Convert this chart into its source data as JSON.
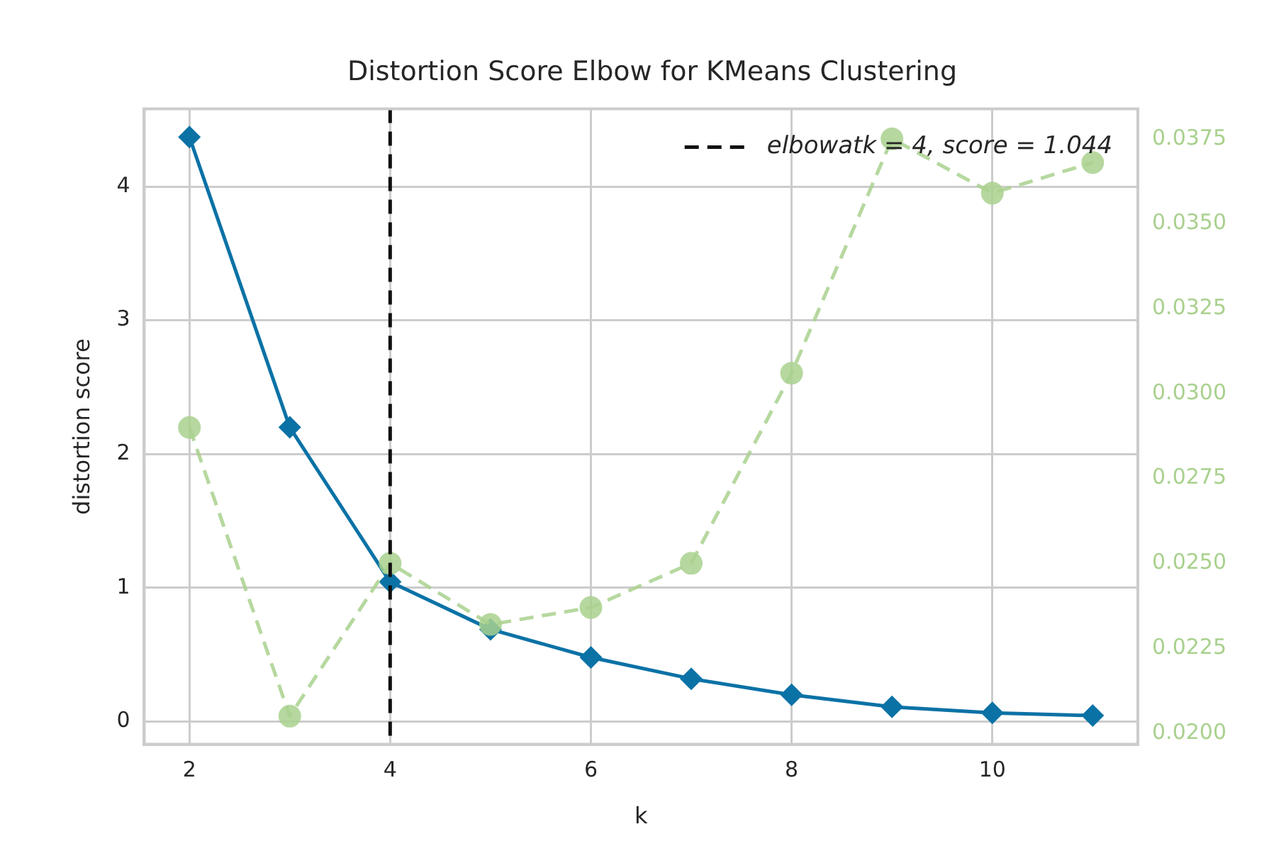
{
  "chart_data": {
    "type": "line",
    "title": "Distortion Score Elbow for KMeans Clustering",
    "xlabel": "k",
    "ylabel": "distortion score",
    "x": [
      2,
      3,
      4,
      5,
      6,
      7,
      8,
      9,
      10,
      11
    ],
    "series": [
      {
        "color": "#0b72a6",
        "values": [
          4.37,
          2.2,
          1.044,
          0.69,
          0.48,
          0.32,
          0.2,
          0.11,
          0.065,
          0.045
        ],
        "marker": "diamond",
        "line_style": "solid"
      },
      {
        "color": "#a9d18e",
        "axis": "y2",
        "values": [
          0.029,
          0.0205,
          0.025,
          0.0232,
          0.0237,
          0.025,
          0.0306,
          0.0375,
          0.0359,
          0.0368
        ],
        "marker": "circle",
        "line_style": "dashed"
      }
    ],
    "xlim": [
      1.55,
      11.45
    ],
    "xticks": [
      2,
      4,
      6,
      8,
      10
    ],
    "ylim": [
      -0.17,
      4.58
    ],
    "yticks": [
      0,
      1,
      2,
      3,
      4
    ],
    "y2lim": [
      0.01967,
      0.03838
    ],
    "y2ticks": [
      {
        "value": 0.02,
        "label": "0.0200"
      },
      {
        "value": 0.0225,
        "label": "0.0225"
      },
      {
        "value": 0.025,
        "label": "0.0250"
      },
      {
        "value": 0.0275,
        "label": "0.0275"
      },
      {
        "value": 0.03,
        "label": "0.0300"
      },
      {
        "value": 0.0325,
        "label": "0.0325"
      },
      {
        "value": 0.035,
        "label": "0.0350"
      },
      {
        "value": 0.0375,
        "label": "0.0375"
      }
    ],
    "ref_lines": [
      {
        "axis": "x",
        "value": 4,
        "label": "elbowatk = 4, score = 1.044",
        "color": "#111111",
        "line_style": "dashed"
      }
    ],
    "grid": true,
    "legend": "top right"
  }
}
